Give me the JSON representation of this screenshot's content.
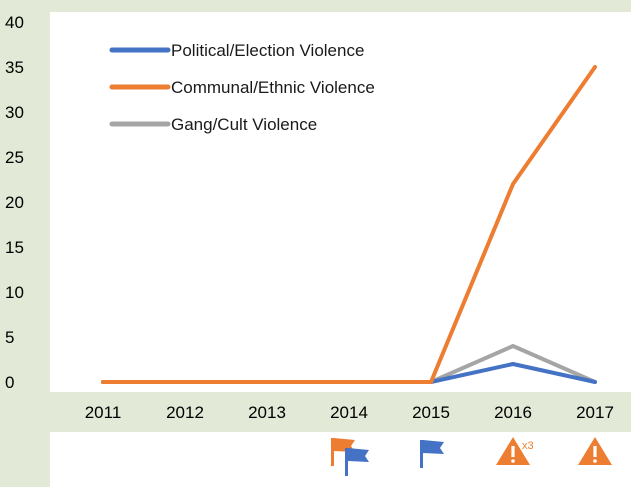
{
  "chart_data": {
    "type": "line",
    "categories": [
      "2011",
      "2012",
      "2013",
      "2014",
      "2015",
      "2016",
      "2017"
    ],
    "ylim": [
      0,
      40
    ],
    "yticks": [
      "0",
      "5",
      "10",
      "15",
      "20",
      "25",
      "30",
      "35",
      "40"
    ],
    "grid": false,
    "legend": "top-left",
    "series": [
      {
        "name": "Political/Election Violence",
        "color": "#4472c4",
        "values": [
          0,
          0,
          0,
          0,
          0,
          2,
          0
        ]
      },
      {
        "name": "Communal/Ethnic Violence",
        "color": "#ed7d31",
        "values": [
          0,
          0,
          0,
          0,
          0,
          22,
          35
        ]
      },
      {
        "name": "Gang/Cult Violence",
        "color": "#a5a5a5",
        "values": [
          0,
          0,
          0,
          0,
          0,
          4,
          0
        ]
      }
    ]
  },
  "markers": [
    {
      "category": "2014",
      "icons": [
        "orange-flag",
        "blue-flag"
      ]
    },
    {
      "category": "2015",
      "icons": [
        "blue-flag"
      ]
    },
    {
      "category": "2016",
      "icons": [
        "warning-triangle"
      ],
      "count_label": "x3"
    },
    {
      "category": "2017",
      "icons": [
        "warning-triangle"
      ]
    }
  ],
  "colors": {
    "background": "#e2ead7",
    "panel": "#ffffff",
    "orange": "#ed7d31",
    "blue": "#4472c4"
  }
}
